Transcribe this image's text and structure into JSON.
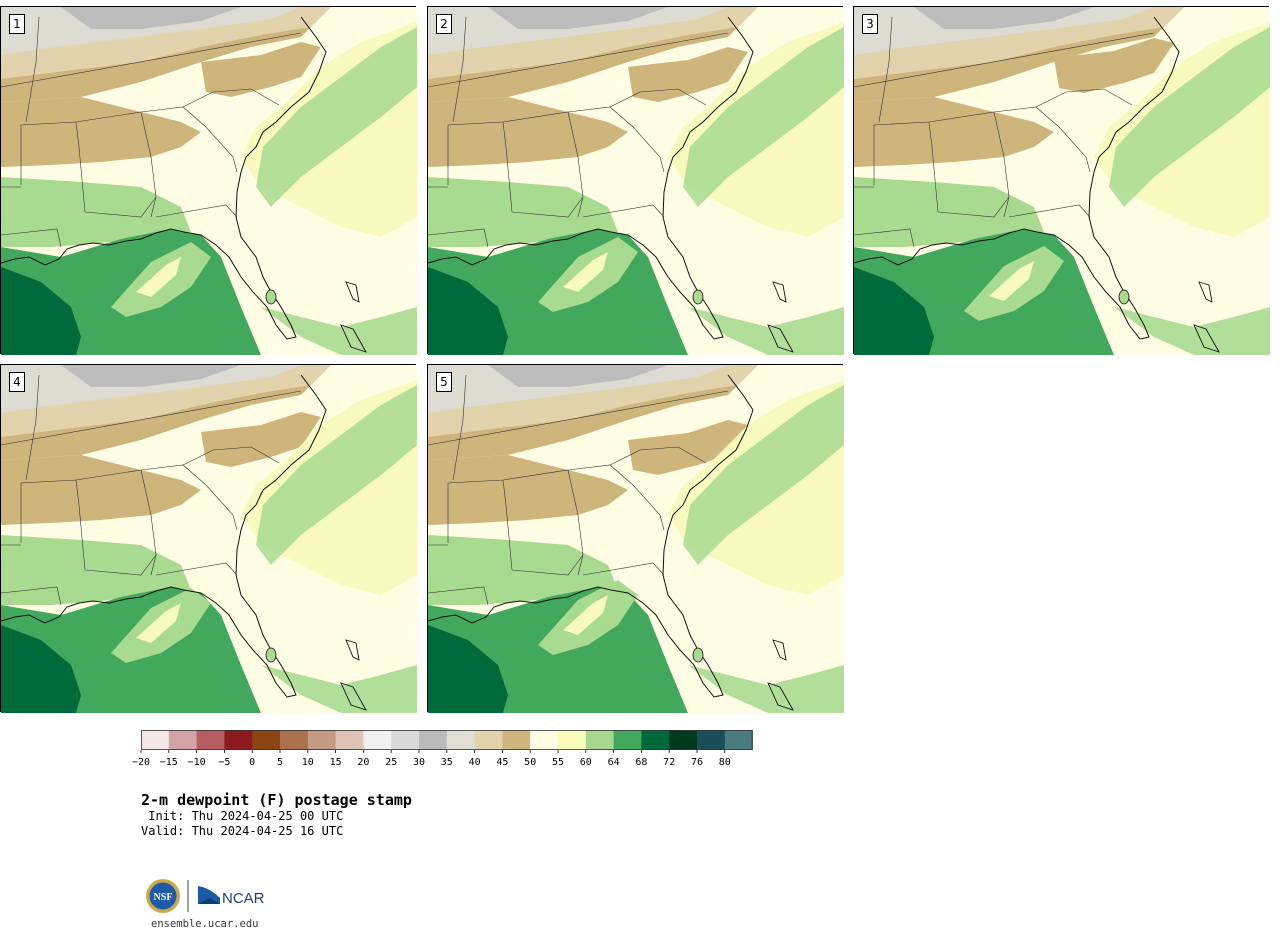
{
  "panels": [
    {
      "label": "1",
      "variant": 0
    },
    {
      "label": "2",
      "variant": 1
    },
    {
      "label": "3",
      "variant": 2
    },
    {
      "label": "4",
      "variant": 3
    },
    {
      "label": "5",
      "variant": 4
    }
  ],
  "colorbar": {
    "colors": [
      "#f4e8e6",
      "#d4a3a6",
      "#b55f63",
      "#8b1a21",
      "#8b4513",
      "#a9714e",
      "#c49a82",
      "#dfc3b4",
      "#f0f0f0",
      "#dadada",
      "#bbbbbb",
      "#dfdfd5",
      "#e3d3ac",
      "#d0b57e",
      "#fffee4",
      "#fafcbc",
      "#a6d98f",
      "#41a85e",
      "#00693b",
      "#00391d",
      "#1a4e58",
      "#4b7b80"
    ],
    "ticks": [
      "−20",
      "−15",
      "−10",
      "−5",
      "0",
      "5",
      "10",
      "15",
      "20",
      "25",
      "30",
      "35",
      "40",
      "45",
      "50",
      "55",
      "60",
      "64",
      "68",
      "72",
      "76",
      "80"
    ]
  },
  "title": "2-m dewpoint (F) postage stamp",
  "init": " Init: Thu 2024-04-25 00 UTC",
  "valid": "Valid: Thu 2024-04-25 16 UTC",
  "logos": {
    "nsf": "NSF",
    "ncar": "NCAR"
  },
  "site": "ensemble.ucar.edu",
  "map_colors": {
    "grey": "#bdbdbd",
    "light_grey": "#dcdcd2",
    "tan_light": "#e3d3ac",
    "tan": "#cdb57c",
    "cream": "#fffee4",
    "yellow": "#f7f9bd",
    "light_green": "#a8da90",
    "green": "#41a85e",
    "dark_green": "#006a3b"
  }
}
